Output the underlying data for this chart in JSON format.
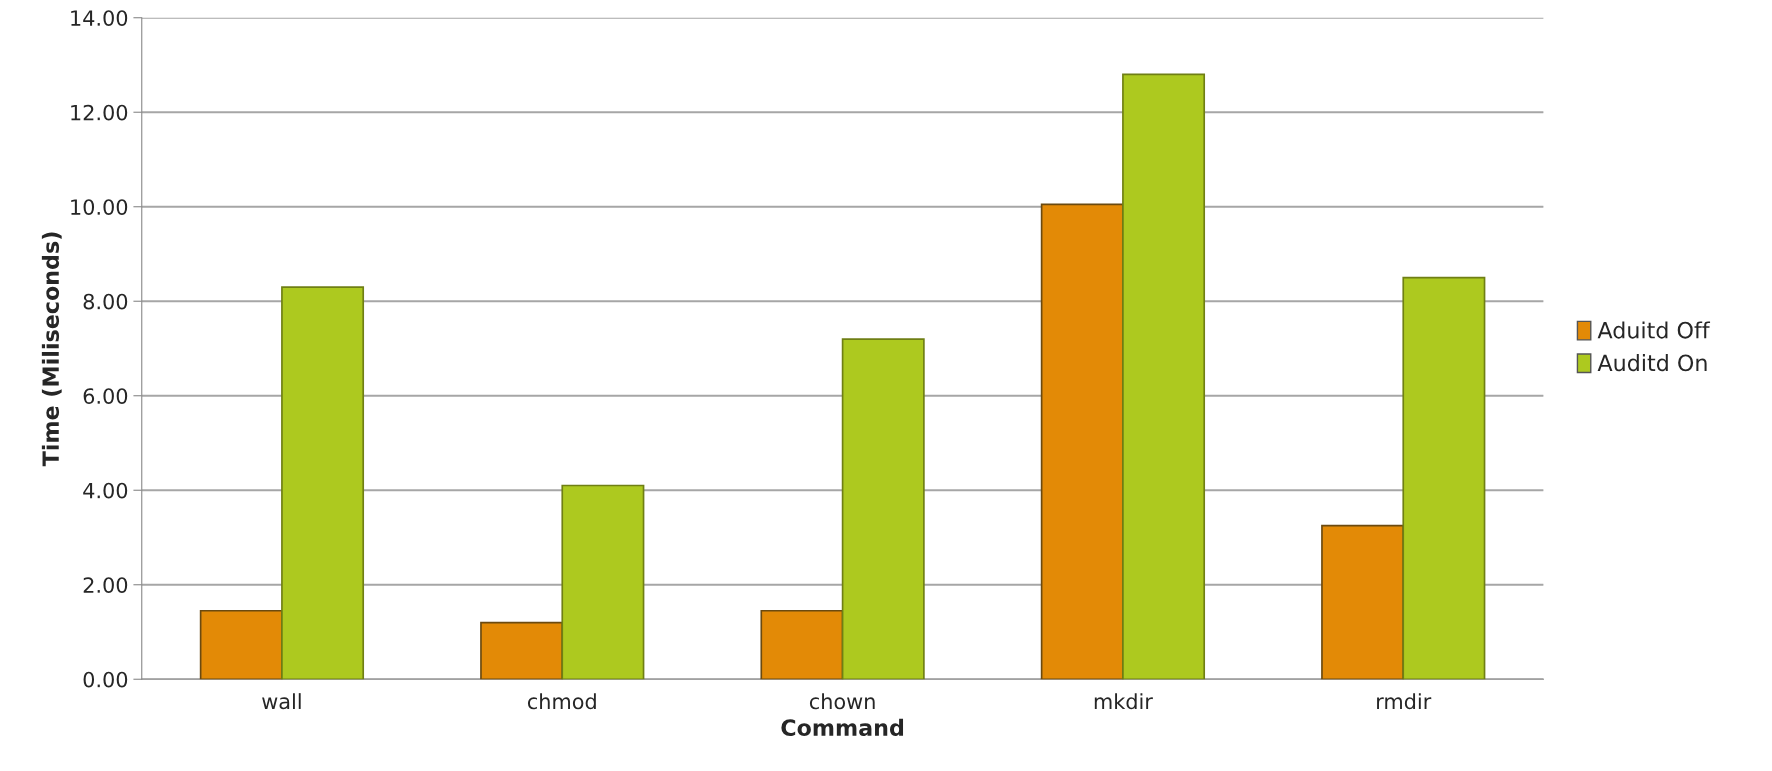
{
  "chart_data": {
    "type": "bar",
    "xlabel": "Command",
    "ylabel": "Time (Miliseconds)",
    "categories": [
      "wall",
      "chmod",
      "chown",
      "mkdir",
      "rmdir"
    ],
    "series": [
      {
        "name": "Aduitd Off",
        "color": "#e38a06",
        "values": [
          1.45,
          1.2,
          1.45,
          10.05,
          3.25
        ]
      },
      {
        "name": "Auditd On",
        "color": "#adc91f",
        "values": [
          8.3,
          4.1,
          7.2,
          12.8,
          8.5
        ]
      }
    ],
    "ylim": [
      0,
      14
    ],
    "yticks": [
      {
        "value": 0,
        "label": "0.00"
      },
      {
        "value": 2,
        "label": "2.00"
      },
      {
        "value": 4,
        "label": "4.00"
      },
      {
        "value": 6,
        "label": "6.00"
      },
      {
        "value": 8,
        "label": "8.00"
      },
      {
        "value": 10,
        "label": "10.00"
      },
      {
        "value": 12,
        "label": "12.00"
      },
      {
        "value": 14,
        "label": "14.00"
      }
    ],
    "grid": "y",
    "legend": "right"
  }
}
